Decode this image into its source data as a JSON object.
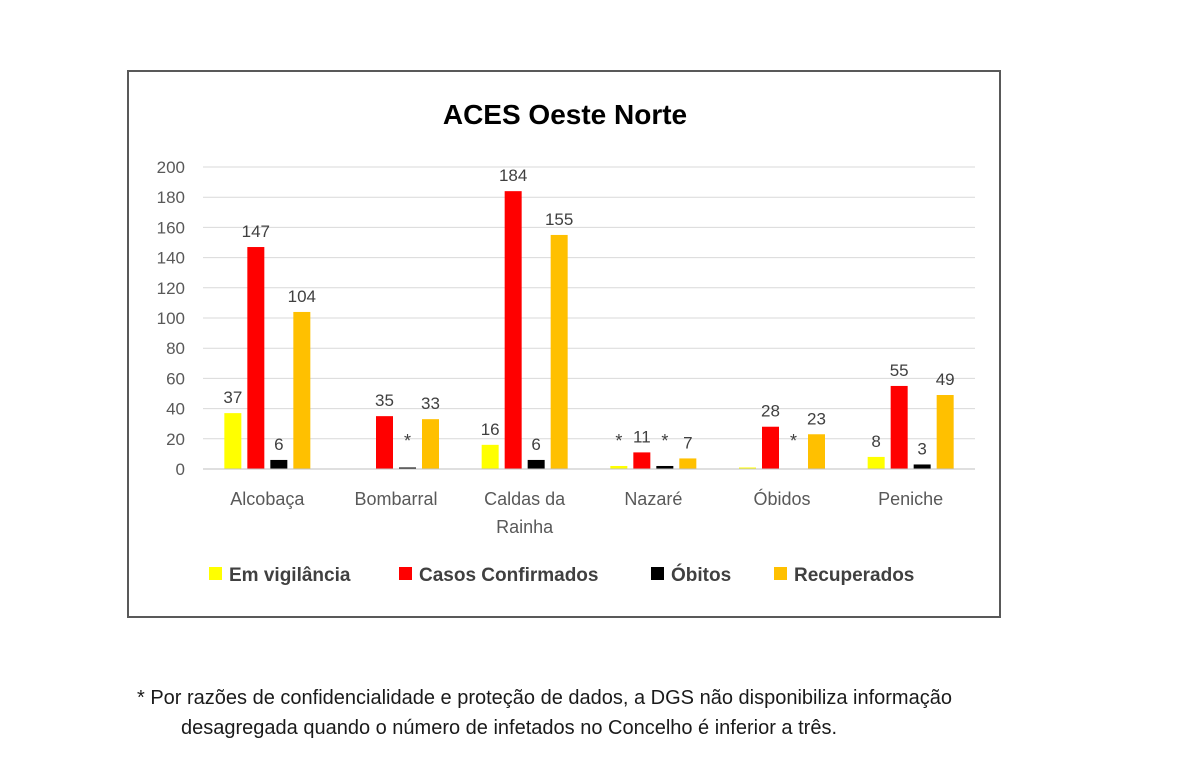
{
  "chart_data": {
    "type": "bar",
    "title": "ACES Oeste Norte",
    "categories": [
      [
        "Alcobaça"
      ],
      [
        "Bombarral"
      ],
      [
        "Caldas da",
        "Rainha"
      ],
      [
        "Nazaré"
      ],
      [
        "Óbidos"
      ],
      [
        "Peniche"
      ]
    ],
    "series": [
      {
        "name": "Em vigilância",
        "color": "#FFFF00",
        "values": [
          37,
          0,
          16,
          2,
          1,
          8
        ],
        "labels": [
          "37",
          "",
          "16",
          "*",
          "",
          "8"
        ]
      },
      {
        "name": "Casos Confirmados",
        "color": "#FF0000",
        "values": [
          147,
          35,
          184,
          11,
          28,
          55
        ],
        "labels": [
          "147",
          "35",
          "184",
          "11",
          "28",
          "55"
        ]
      },
      {
        "name": "Óbitos",
        "color": "#000000",
        "values": [
          6,
          1,
          6,
          2,
          0,
          3
        ],
        "labels": [
          "6",
          "*",
          "6",
          "*",
          "*",
          "3"
        ]
      },
      {
        "name": "Recuperados",
        "color": "#FFC000",
        "values": [
          104,
          33,
          155,
          7,
          23,
          49
        ],
        "labels": [
          "104",
          "33",
          "155",
          "7",
          "23",
          "49"
        ]
      }
    ],
    "ylim": [
      0,
      200
    ],
    "yticks": [
      0,
      20,
      40,
      60,
      80,
      100,
      120,
      140,
      160,
      180,
      200
    ],
    "grid": true,
    "legend_position": "bottom"
  },
  "footnote": {
    "line1": "* Por razões de confidencialidade e proteção de dados, a DGS não disponibiliza informação",
    "line2": "desagregada quando o número de infetados no Concelho é inferior a três."
  }
}
